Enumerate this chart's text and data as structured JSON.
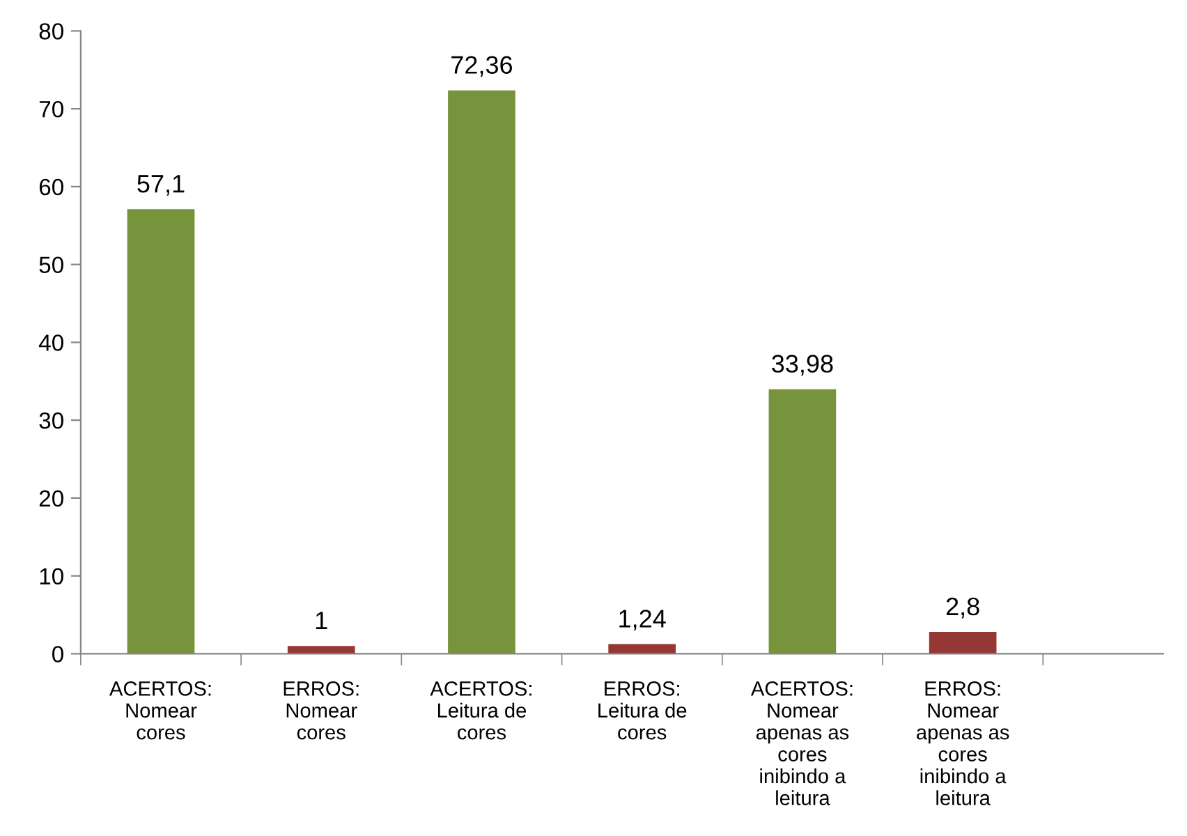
{
  "chart_data": {
    "type": "bar",
    "categories": [
      "ACERTOS:\nNomear\ncores",
      "ERROS:\nNomear\ncores",
      "ACERTOS:\nLeitura de\ncores",
      "ERROS:\nLeitura de\ncores",
      "ACERTOS:\nNomear\napenas as\ncores\ninibindo a\nleitura",
      "ERROS:\nNomear\napenas as\ncores\ninibindo a\nleitura",
      null
    ],
    "values": [
      57.1,
      1,
      72.36,
      1.24,
      33.98,
      2.8,
      null
    ],
    "colors": [
      "#77933c",
      "#953735",
      "#77933c",
      "#953735",
      "#77933c",
      "#953735",
      "#77933c"
    ],
    "value_labels": [
      "57,1",
      "1",
      "72,36",
      "1,24",
      "33,98",
      "2,8",
      null
    ],
    "ylim": [
      0,
      80
    ],
    "yticks": [
      0,
      10,
      20,
      30,
      40,
      50,
      60,
      70,
      80
    ],
    "grid": false,
    "legend": false
  }
}
